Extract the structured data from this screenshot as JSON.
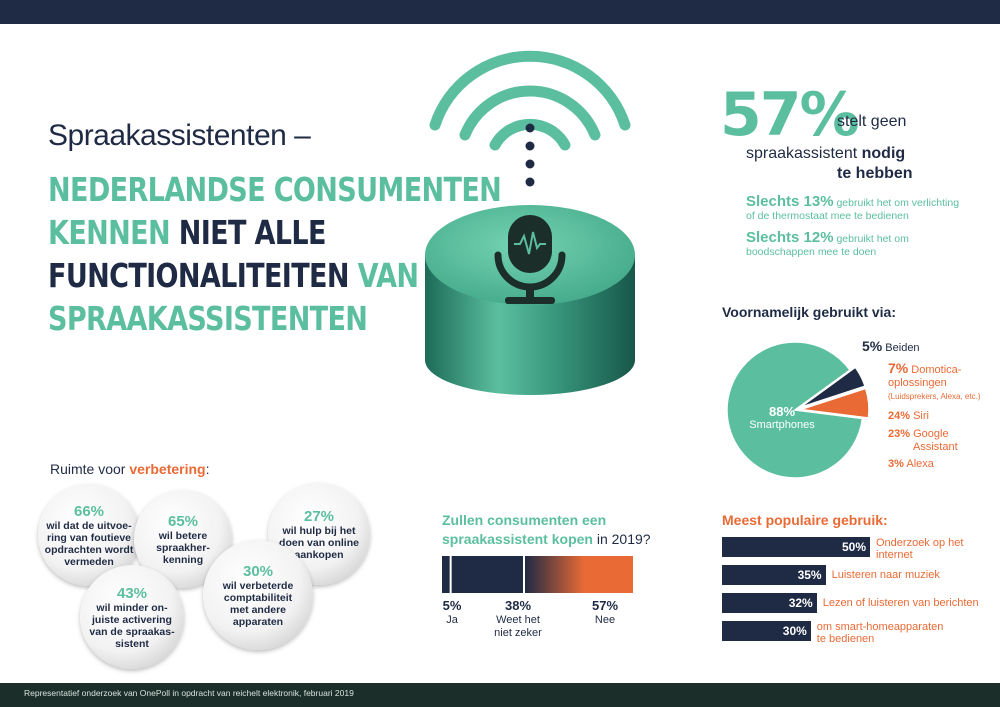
{
  "headline": {
    "prefix": "Spraakassistenten –",
    "line1": "NEDERLANDSE CONSUMENTEN",
    "line2a": "KENNEN",
    "line2b": "NIET ALLE",
    "line3a": "FUNCTIONALITEITEN",
    "line3b": "VAN",
    "line4": "SPRAAKASSISTENTEN"
  },
  "key_stat": {
    "value": "57%",
    "text1": "stelt geen",
    "text2": "spraakassistent",
    "text2b": "nodig",
    "text3": "te hebben",
    "sub1_bold": "Slechts 13%",
    "sub1_text": "gebruikt het om verlichting",
    "sub1_text2": "of de thermostaat mee te bedienen",
    "sub2_bold": "Slechts 12%",
    "sub2_text": "gebruikt het om",
    "sub2_text2": "boodschappen mee te doen"
  },
  "pie": {
    "title": "Voornamelijk gebruikt via:",
    "smart_pct": "88%",
    "smart_label": "Smartphones",
    "both_pct": "5%",
    "both_label": "Beiden",
    "domo_pct": "7%",
    "domo_label1": "Domotica-",
    "domo_label2": "oplossingen",
    "domo_label3": "(Luidsprekers, Alexa, etc.)",
    "siri_pct": "24%",
    "siri_label": "Siri",
    "google_pct": "23%",
    "google_label1": "Google",
    "google_label2": "Assistant",
    "alexa_pct": "3%",
    "alexa_label": "Alexa"
  },
  "improvement": {
    "title_a": "Ruimte voor",
    "title_b": "verbetering",
    "title_c": ":",
    "b1_pct": "66%",
    "b1_text": "wil dat de uitvoe-\nring van foutieve\nopdrachten wordt\nvermeden",
    "b2_pct": "65%",
    "b2_text": "wil betere\nspraakher-\nkenning",
    "b3_pct": "27%",
    "b3_text": "wil hulp bij het\ndoen van online\naankopen",
    "b4_pct": "43%",
    "b4_text": "wil minder on-\njuiste activering\nvan de spraakas-\nsistent",
    "b5_pct": "30%",
    "b5_text": "wil verbeterde\ncomptabiliteit\nmet andere\napparaten"
  },
  "buy": {
    "title1": "Zullen consumenten een",
    "title2a": "spraakassistent kopen",
    "title2b": "in 2019?",
    "ja_pct": "5%",
    "ja_label": "Ja",
    "weet_pct": "38%",
    "weet_label1": "Weet het",
    "weet_label2": "niet zeker",
    "nee_pct": "57%",
    "nee_label": "Nee"
  },
  "popular": {
    "title": "Meest populaire gebruik:",
    "rows": [
      {
        "value_label": "50%",
        "label1": "Onderzoek op het",
        "label2": "internet"
      },
      {
        "value_label": "35%",
        "label1": "Luisteren naar muziek",
        "label2": ""
      },
      {
        "value_label": "32%",
        "label1": "Lezen of luisteren van berichten",
        "label2": ""
      },
      {
        "value_label": "30%",
        "label1": "om smart-homeapparaten",
        "label2": "te bedienen"
      }
    ]
  },
  "footer": "Representatief onderzoek van OnePoll in opdracht van reichelt elektronik, februari 2019",
  "colors": {
    "teal": "#5bbf9f",
    "navy": "#1f2a44",
    "orange": "#ea6a35"
  },
  "chart_data": [
    {
      "type": "pie",
      "title": "Voornamelijk gebruikt via:",
      "categories": [
        "Smartphones",
        "Beiden",
        "Domotica-oplossingen"
      ],
      "values": [
        88,
        5,
        7
      ]
    },
    {
      "type": "bar",
      "title": "Zullen consumenten een spraakassistent kopen in 2019?",
      "categories": [
        "Ja",
        "Weet het niet zeker",
        "Nee"
      ],
      "values": [
        5,
        38,
        57
      ]
    },
    {
      "type": "bar",
      "title": "Meest populaire gebruik:",
      "categories": [
        "Onderzoek op het internet",
        "Luisteren naar muziek",
        "Lezen of luisteren van berichten",
        "om smart-homeapparaten te bedienen"
      ],
      "values": [
        50,
        35,
        32,
        30
      ]
    }
  ]
}
